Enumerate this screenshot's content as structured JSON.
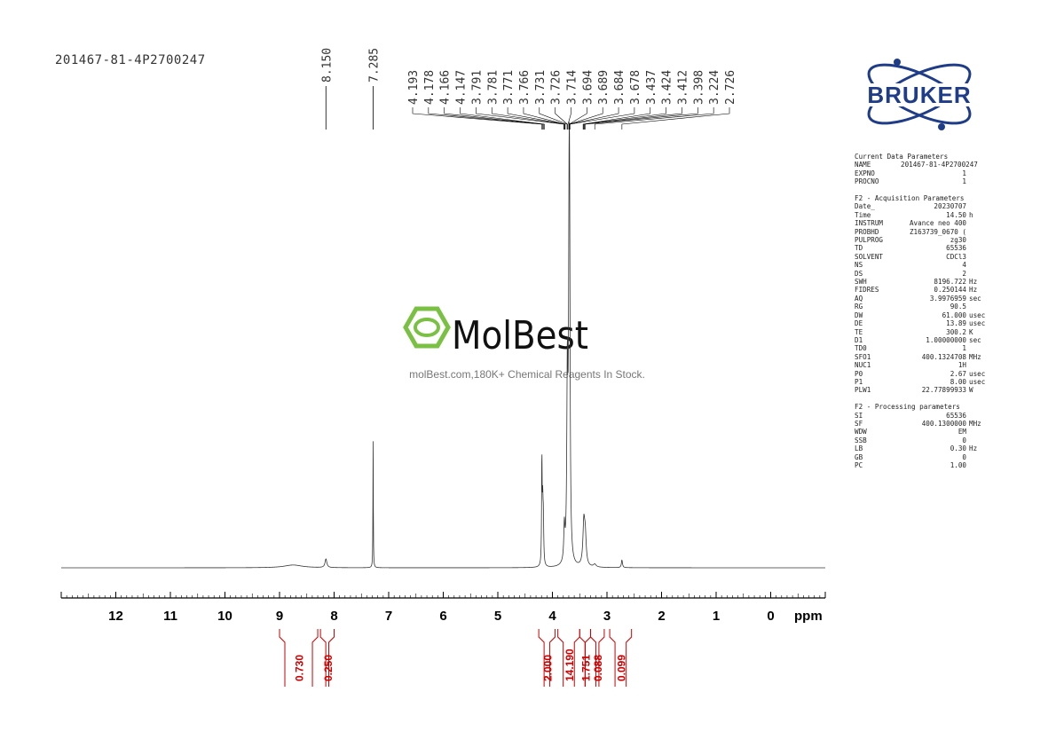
{
  "sample_id": "201467-81-4P2700247",
  "brand": {
    "name": "BRUKER",
    "color": "#1f3c88"
  },
  "watermark": {
    "name": "MolBest",
    "tagline": "molBest.com,180K+ Chemical Reagents In Stock.",
    "color": "#7ac143"
  },
  "params": [
    {
      "title": "Current Data Parameters",
      "rows": [
        {
          "k": "NAME",
          "v": "201467-81-4P2700247",
          "u": ""
        },
        {
          "k": "EXPNO",
          "v": "1",
          "u": ""
        },
        {
          "k": "PROCNO",
          "v": "1",
          "u": ""
        }
      ]
    },
    {
      "title": "F2 - Acquisition Parameters",
      "rows": [
        {
          "k": "Date_",
          "v": "20230707",
          "u": ""
        },
        {
          "k": "Time",
          "v": "14.50",
          "u": "h"
        },
        {
          "k": "INSTRUM",
          "v": "Avance neo 400",
          "u": ""
        },
        {
          "k": "PROBHD",
          "v": "Z163739_0670 (",
          "u": ""
        },
        {
          "k": "PULPROG",
          "v": "zg30",
          "u": ""
        },
        {
          "k": "TD",
          "v": "65536",
          "u": ""
        },
        {
          "k": "SOLVENT",
          "v": "CDCl3",
          "u": ""
        },
        {
          "k": "NS",
          "v": "4",
          "u": ""
        },
        {
          "k": "DS",
          "v": "2",
          "u": ""
        },
        {
          "k": "SWH",
          "v": "8196.722",
          "u": "Hz"
        },
        {
          "k": "FIDRES",
          "v": "0.250144",
          "u": "Hz"
        },
        {
          "k": "AQ",
          "v": "3.9976959",
          "u": "sec"
        },
        {
          "k": "RG",
          "v": "90.5",
          "u": ""
        },
        {
          "k": "DW",
          "v": "61.000",
          "u": "usec"
        },
        {
          "k": "DE",
          "v": "13.89",
          "u": "usec"
        },
        {
          "k": "TE",
          "v": "300.2",
          "u": "K"
        },
        {
          "k": "D1",
          "v": "1.00000000",
          "u": "sec"
        },
        {
          "k": "TD0",
          "v": "1",
          "u": ""
        },
        {
          "k": "SFO1",
          "v": "400.1324708",
          "u": "MHz"
        },
        {
          "k": "NUC1",
          "v": "1H",
          "u": ""
        },
        {
          "k": "P0",
          "v": "2.67",
          "u": "usec"
        },
        {
          "k": "P1",
          "v": "8.00",
          "u": "usec"
        },
        {
          "k": "PLW1",
          "v": "22.77899933",
          "u": "W"
        }
      ]
    },
    {
      "title": "F2 - Processing parameters",
      "rows": [
        {
          "k": "SI",
          "v": "65536",
          "u": ""
        },
        {
          "k": "SF",
          "v": "400.1300000",
          "u": "MHz"
        },
        {
          "k": "WDW",
          "v": "EM",
          "u": ""
        },
        {
          "k": "SSB",
          "v": "0",
          "u": ""
        },
        {
          "k": "LB",
          "v": "0.30",
          "u": "Hz"
        },
        {
          "k": "GB",
          "v": "0",
          "u": ""
        },
        {
          "k": "PC",
          "v": "1.00",
          "u": ""
        }
      ]
    }
  ],
  "chart_data": {
    "type": "line",
    "x_unit": "ppm",
    "xlim": [
      13,
      -1
    ],
    "x_ticks": [
      12,
      11,
      10,
      9,
      8,
      7,
      6,
      5,
      4,
      3,
      2,
      1,
      0
    ],
    "x_tick_labels": [
      "12",
      "11",
      "10",
      "9",
      "8",
      "7",
      "6",
      "5",
      "4",
      "3",
      "2",
      "1",
      "0"
    ],
    "peaks": [
      {
        "ppm": 8.75,
        "height": 0.008,
        "width": 0.2
      },
      {
        "ppm": 8.15,
        "height": 0.025,
        "width": 0.02
      },
      {
        "ppm": 7.285,
        "height": 0.37,
        "width": 0.004
      },
      {
        "ppm": 4.193,
        "height": 0.3,
        "width": 0.006
      },
      {
        "ppm": 4.178,
        "height": 0.16,
        "width": 0.008
      },
      {
        "ppm": 4.166,
        "height": 0.12,
        "width": 0.008
      },
      {
        "ppm": 3.781,
        "height": 0.1,
        "width": 0.012
      },
      {
        "ppm": 3.726,
        "height": 0.52,
        "width": 0.012
      },
      {
        "ppm": 3.694,
        "height": 0.88,
        "width": 0.012
      },
      {
        "ppm": 3.684,
        "height": 0.6,
        "width": 0.01
      },
      {
        "ppm": 3.424,
        "height": 0.12,
        "width": 0.02
      },
      {
        "ppm": 3.398,
        "height": 0.08,
        "width": 0.02
      },
      {
        "ppm": 3.224,
        "height": 0.008,
        "width": 0.03
      },
      {
        "ppm": 2.726,
        "height": 0.022,
        "width": 0.012
      }
    ],
    "peak_labels": [
      {
        "ppm": 8.15,
        "label": "8.150"
      },
      {
        "ppm": 7.285,
        "label": "7.285"
      }
    ],
    "peak_label_group": {
      "labels": [
        "4.193",
        "4.178",
        "4.166",
        "4.147",
        "3.791",
        "3.781",
        "3.771",
        "3.766",
        "3.731",
        "3.726",
        "3.714",
        "3.694",
        "3.689",
        "3.684",
        "3.678",
        "3.437",
        "3.424",
        "3.412",
        "3.398",
        "3.224",
        "2.726"
      ],
      "peak_ppms": [
        4.193,
        4.178,
        4.166,
        4.147,
        3.791,
        3.781,
        3.771,
        3.766,
        3.731,
        3.726,
        3.714,
        3.694,
        3.689,
        3.684,
        3.678,
        3.437,
        3.424,
        3.412,
        3.398,
        3.224,
        2.726
      ]
    },
    "integrals": [
      {
        "from": 9.0,
        "to": 8.3,
        "value": "0.730"
      },
      {
        "from": 8.25,
        "to": 8.0,
        "value": "0.250"
      },
      {
        "from": 4.25,
        "to": 3.95,
        "value": "2.000"
      },
      {
        "from": 3.9,
        "to": 3.5,
        "value": "14.190"
      },
      {
        "from": 3.5,
        "to": 3.3,
        "value": "1.751"
      },
      {
        "from": 3.3,
        "to": 3.05,
        "value": "0.088"
      },
      {
        "from": 2.95,
        "to": 2.55,
        "value": "0.099"
      }
    ],
    "integral_color": "#cc0000"
  }
}
